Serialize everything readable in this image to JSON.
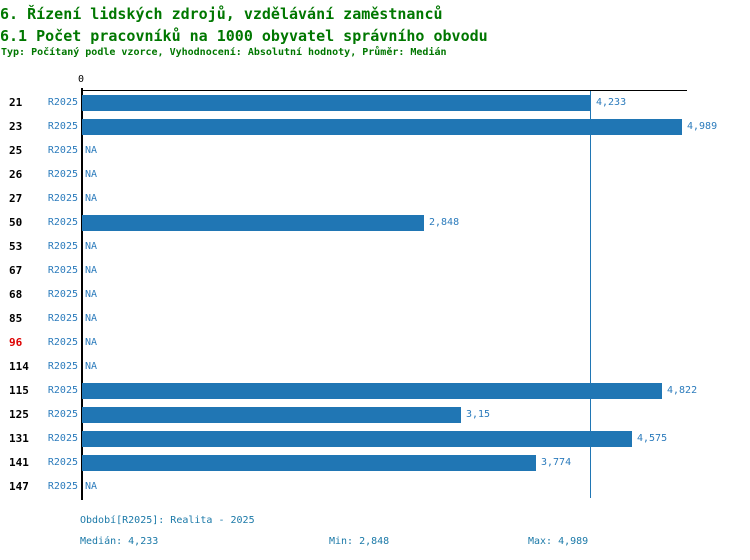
{
  "header": {
    "title1": "6. Řízení lidských zdrojů, vzdělávání zaměstnanců",
    "title2": "6.1 Počet pracovníků na 1000 obyvatel správního obvodu",
    "meta": "Typ: Počítaný podle vzorce, Vyhodnocení: Absolutní hodnoty, Průměr: Medián"
  },
  "chart_data": {
    "type": "bar",
    "orientation": "horizontal",
    "title": "6.1 Počet pracovníků na 1000 obyvatel správního obvodu",
    "series_label": "R2025",
    "axis_zero_label": "0",
    "xlim": [
      0,
      5.03
    ],
    "grid": false,
    "median_value": 4.233,
    "colors": {
      "bar": "#2076B4",
      "median_line": "#2076B4",
      "title": "#007700",
      "value_text": "#2B7BBC",
      "footer_text": "#1B79A8",
      "highlight_code": "#DD0000"
    },
    "categories": [
      "21",
      "23",
      "25",
      "26",
      "27",
      "50",
      "53",
      "67",
      "68",
      "85",
      "96",
      "114",
      "115",
      "125",
      "131",
      "141",
      "147"
    ],
    "rows": [
      {
        "code": "21",
        "period": "R2025",
        "value": 4.233,
        "label": "4,233",
        "highlight": false
      },
      {
        "code": "23",
        "period": "R2025",
        "value": 4.989,
        "label": "4,989",
        "highlight": false
      },
      {
        "code": "25",
        "period": "R2025",
        "value": null,
        "label": "NA",
        "highlight": false
      },
      {
        "code": "26",
        "period": "R2025",
        "value": null,
        "label": "NA",
        "highlight": false
      },
      {
        "code": "27",
        "period": "R2025",
        "value": null,
        "label": "NA",
        "highlight": false
      },
      {
        "code": "50",
        "period": "R2025",
        "value": 2.848,
        "label": "2,848",
        "highlight": false
      },
      {
        "code": "53",
        "period": "R2025",
        "value": null,
        "label": "NA",
        "highlight": false
      },
      {
        "code": "67",
        "period": "R2025",
        "value": null,
        "label": "NA",
        "highlight": false
      },
      {
        "code": "68",
        "period": "R2025",
        "value": null,
        "label": "NA",
        "highlight": false
      },
      {
        "code": "85",
        "period": "R2025",
        "value": null,
        "label": "NA",
        "highlight": false
      },
      {
        "code": "96",
        "period": "R2025",
        "value": null,
        "label": "NA",
        "highlight": true
      },
      {
        "code": "114",
        "period": "R2025",
        "value": null,
        "label": "NA",
        "highlight": false
      },
      {
        "code": "115",
        "period": "R2025",
        "value": 4.822,
        "label": "4,822",
        "highlight": false
      },
      {
        "code": "125",
        "period": "R2025",
        "value": 3.15,
        "label": "3,15",
        "highlight": false
      },
      {
        "code": "131",
        "period": "R2025",
        "value": 4.575,
        "label": "4,575",
        "highlight": false
      },
      {
        "code": "141",
        "period": "R2025",
        "value": 3.774,
        "label": "3,774",
        "highlight": false
      },
      {
        "code": "147",
        "period": "R2025",
        "value": null,
        "label": "NA",
        "highlight": false
      }
    ]
  },
  "footer": {
    "period_line": "Období[R2025]: Realita - 2025",
    "median": "Medián: 4,233",
    "min": "Min: 2,848",
    "max": "Max: 4,989"
  }
}
